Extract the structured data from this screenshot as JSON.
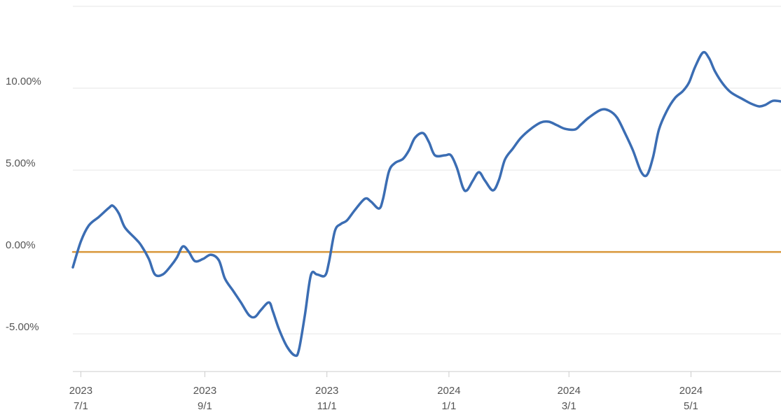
{
  "chart_data": {
    "type": "line",
    "xlim": [
      "2023-06-27",
      "2024-06-15"
    ],
    "xticks": [
      {
        "value": "2023-07-01",
        "label": "2023\n7/1"
      },
      {
        "value": "2023-09-01",
        "label": "2023\n9/1"
      },
      {
        "value": "2023-11-01",
        "label": "2023\n11/1"
      },
      {
        "value": "2024-01-01",
        "label": "2024\n1/1"
      },
      {
        "value": "2024-03-01",
        "label": "2024\n3/1"
      },
      {
        "value": "2024-05-01",
        "label": "2024\n5/1"
      }
    ],
    "ylim": [
      -7.3,
      15
    ],
    "yticks": [
      {
        "value": -5,
        "label": "-5.00%"
      },
      {
        "value": 0,
        "label": "0.00%"
      },
      {
        "value": 5,
        "label": "5.00%"
      },
      {
        "value": 10,
        "label": "10.00%"
      }
    ],
    "grid": true,
    "x": [
      "2023-06-27",
      "2023-07-01",
      "2023-07-05",
      "2023-07-10",
      "2023-07-15",
      "2023-07-17",
      "2023-07-20",
      "2023-07-23",
      "2023-07-28",
      "2023-07-31",
      "2023-08-04",
      "2023-08-07",
      "2023-08-11",
      "2023-08-15",
      "2023-08-18",
      "2023-08-21",
      "2023-08-24",
      "2023-08-27",
      "2023-08-31",
      "2023-09-04",
      "2023-09-08",
      "2023-09-11",
      "2023-09-15",
      "2023-09-19",
      "2023-09-23",
      "2023-09-26",
      "2023-09-29",
      "2023-10-03",
      "2023-10-05",
      "2023-10-08",
      "2023-10-12",
      "2023-10-16",
      "2023-10-18",
      "2023-10-21",
      "2023-10-24",
      "2023-10-27",
      "2023-10-31",
      "2023-11-02",
      "2023-11-05",
      "2023-11-08",
      "2023-11-11",
      "2023-11-15",
      "2023-11-20",
      "2023-11-23",
      "2023-11-27",
      "2023-11-29",
      "2023-12-02",
      "2023-12-05",
      "2023-12-09",
      "2023-12-12",
      "2023-12-15",
      "2023-12-19",
      "2023-12-22",
      "2023-12-25",
      "2023-12-30",
      "2024-01-02",
      "2024-01-05",
      "2024-01-08",
      "2024-01-10",
      "2024-01-13",
      "2024-01-16",
      "2024-01-19",
      "2024-01-23",
      "2024-01-26",
      "2024-01-29",
      "2024-02-02",
      "2024-02-06",
      "2024-02-11",
      "2024-02-16",
      "2024-02-20",
      "2024-02-24",
      "2024-02-28",
      "2024-03-04",
      "2024-03-07",
      "2024-03-11",
      "2024-03-17",
      "2024-03-21",
      "2024-03-25",
      "2024-03-29",
      "2024-04-02",
      "2024-04-06",
      "2024-04-09",
      "2024-04-12",
      "2024-04-15",
      "2024-04-19",
      "2024-04-23",
      "2024-04-27",
      "2024-04-30",
      "2024-05-03",
      "2024-05-07",
      "2024-05-10",
      "2024-05-13",
      "2024-05-17",
      "2024-05-21",
      "2024-05-27",
      "2024-05-31",
      "2024-06-04",
      "2024-06-07",
      "2024-06-11",
      "2024-06-15"
    ],
    "series": [
      {
        "color": "#3b6db3",
        "values": [
          -0.94,
          0.64,
          1.62,
          2.14,
          2.69,
          2.82,
          2.35,
          1.5,
          0.85,
          0.43,
          -0.43,
          -1.37,
          -1.37,
          -0.85,
          -0.34,
          0.34,
          0,
          -0.56,
          -0.43,
          -0.17,
          -0.51,
          -1.62,
          -2.35,
          -3.08,
          -3.85,
          -3.97,
          -3.55,
          -3.08,
          -3.63,
          -4.7,
          -5.77,
          -6.32,
          -5.98,
          -3.85,
          -1.41,
          -1.37,
          -1.45,
          -0.64,
          1.28,
          1.71,
          1.92,
          2.56,
          3.25,
          3.08,
          2.65,
          3.21,
          4.91,
          5.43,
          5.68,
          6.2,
          6.97,
          7.26,
          6.71,
          5.9,
          5.9,
          5.9,
          5.13,
          3.93,
          3.76,
          4.36,
          4.87,
          4.36,
          3.76,
          4.4,
          5.64,
          6.32,
          6.97,
          7.52,
          7.91,
          7.95,
          7.74,
          7.52,
          7.48,
          7.78,
          8.21,
          8.68,
          8.63,
          8.21,
          7.26,
          6.2,
          4.91,
          4.7,
          5.77,
          7.48,
          8.63,
          9.4,
          9.83,
          10.34,
          11.28,
          12.18,
          11.84,
          11.03,
          10.26,
          9.74,
          9.32,
          9.06,
          8.89,
          8.97,
          9.23,
          9.19
        ]
      },
      {
        "color": "#d9973a",
        "x": [
          "2023-06-27",
          "2024-06-15"
        ],
        "values": [
          0,
          0
        ]
      }
    ]
  }
}
